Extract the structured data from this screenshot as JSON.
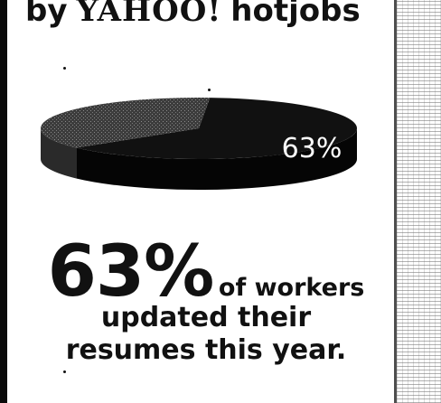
{
  "header": {
    "by": "by",
    "brand": "YAHOO!",
    "product": "hotjobs"
  },
  "headline": {
    "percent": "63%",
    "line1_rest": "of workers",
    "line2": "updated their",
    "line3": "resumes this year."
  },
  "colors": {
    "slice_main": "#111111",
    "slice_minor": "#3c3c3c",
    "background": "#ffffff"
  },
  "chart_data": {
    "type": "pie",
    "style": "3d",
    "slices": [
      {
        "value": 63,
        "label": "63%"
      },
      {
        "value": 37
      }
    ],
    "title": "",
    "legend": "none"
  }
}
